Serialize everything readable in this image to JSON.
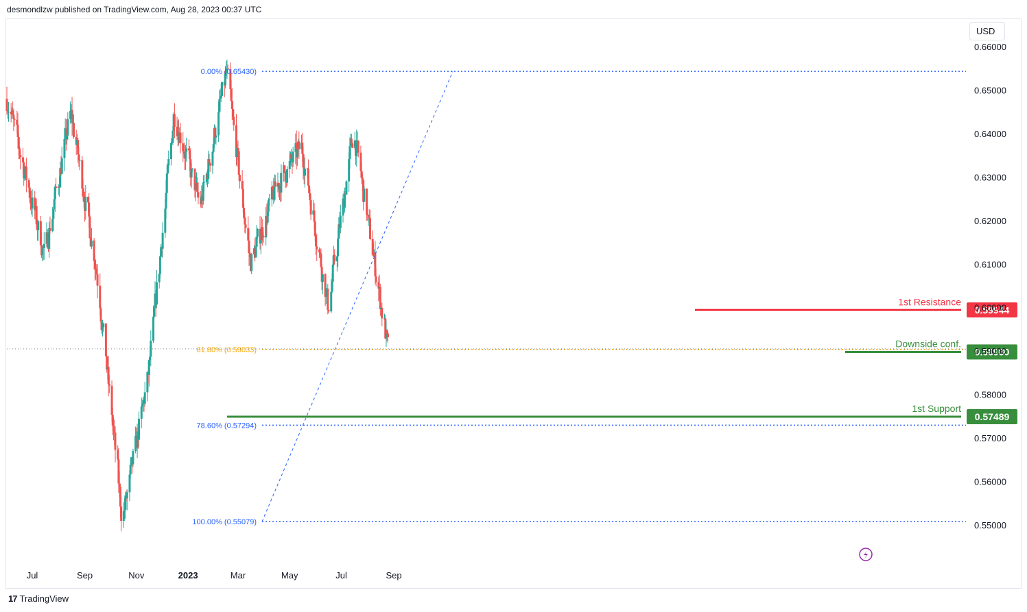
{
  "header": {
    "text": "desmondlzw published on TradingView.com, Aug 28, 2023 00:37 UTC"
  },
  "currency_button": "USD",
  "footer": {
    "logo": "17",
    "brand": "TradingView"
  },
  "colors": {
    "bull": "#26a69a",
    "bear": "#ef5350",
    "resistance": "#f23645",
    "support": "#388e3c",
    "fib_blue": "#2962ff",
    "fib_orange": "#f7a600"
  },
  "chart_data": {
    "type": "candlestick",
    "y_ticks": [
      "0.66000",
      "0.65000",
      "0.64000",
      "0.63000",
      "0.62000",
      "0.61000",
      "0.60000",
      "0.59000",
      "0.58000",
      "0.57000",
      "0.56000",
      "0.55000"
    ],
    "x_ticks": [
      "Jul",
      "Sep",
      "Nov",
      "2023",
      "Mar",
      "May",
      "Jul",
      "Sep"
    ],
    "ylim": [
      0.5475,
      0.662
    ],
    "fib_levels": [
      {
        "label": "0.00% (0.65430)",
        "value": 0.6543
      },
      {
        "label": "61.80% (0.59033)",
        "value": 0.59033
      },
      {
        "label": "78.60% (0.57294)",
        "value": 0.57294
      },
      {
        "label": "100.00% (0.55079)",
        "value": 0.55079
      }
    ],
    "levels": [
      {
        "label": "1st Resistance",
        "value": 0.59944,
        "badge": "0.59944"
      },
      {
        "label": "Downside conf.",
        "value": 0.5898,
        "badge": "0.58980"
      },
      {
        "label": "1st Support",
        "value": 0.57489,
        "badge": "0.57489"
      }
    ],
    "key_points": [
      {
        "date": "2022-06",
        "price": 0.648
      },
      {
        "date": "2022-07",
        "price": 0.612
      },
      {
        "date": "2022-08",
        "price": 0.645
      },
      {
        "date": "2022-09",
        "price": 0.608
      },
      {
        "date": "2022-10",
        "price": 0.5508
      },
      {
        "date": "2022-11",
        "price": 0.585
      },
      {
        "date": "2022-12",
        "price": 0.645
      },
      {
        "date": "2023-01",
        "price": 0.623
      },
      {
        "date": "2023-02",
        "price": 0.6543
      },
      {
        "date": "2023-03",
        "price": 0.61
      },
      {
        "date": "2023-04",
        "price": 0.628
      },
      {
        "date": "2023-05",
        "price": 0.637
      },
      {
        "date": "2023-06",
        "price": 0.6
      },
      {
        "date": "2023-07",
        "price": 0.641
      },
      {
        "date": "2023-08",
        "price": 0.5898
      }
    ]
  }
}
